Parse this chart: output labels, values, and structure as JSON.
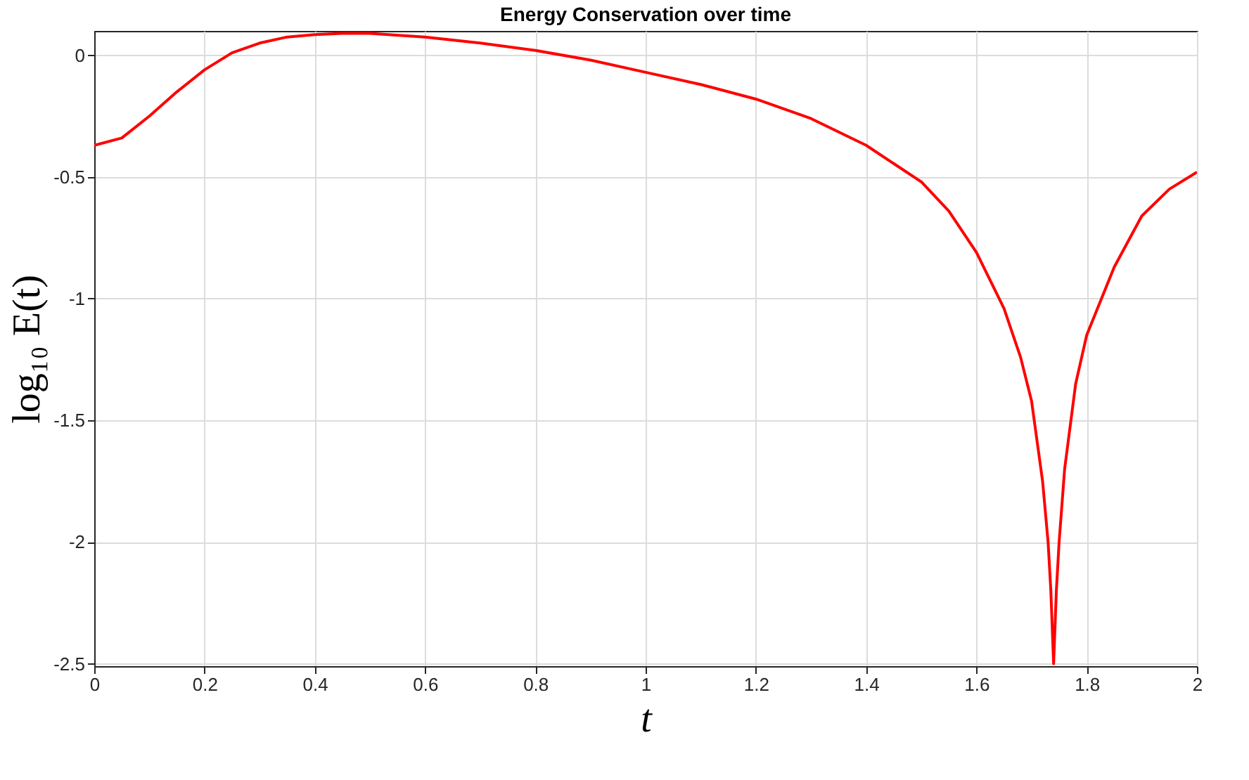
{
  "chart_data": {
    "type": "line",
    "title": "Energy Conservation over time",
    "xlabel": "t",
    "ylabel": "log₁₀ E(t)",
    "x": [
      0,
      0.05,
      0.1,
      0.15,
      0.2,
      0.25,
      0.3,
      0.35,
      0.4,
      0.45,
      0.5,
      0.6,
      0.7,
      0.8,
      0.9,
      1.0,
      1.1,
      1.2,
      1.3,
      1.4,
      1.5,
      1.55,
      1.6,
      1.65,
      1.68,
      1.7,
      1.72,
      1.73,
      1.735,
      1.74,
      1.745,
      1.75,
      1.76,
      1.78,
      1.8,
      1.85,
      1.9,
      1.95,
      2.0
    ],
    "series": [
      {
        "color": "#ff0000",
        "values": [
          -0.37,
          -0.34,
          -0.25,
          -0.15,
          -0.06,
          0.01,
          0.05,
          0.075,
          0.085,
          0.09,
          0.09,
          0.075,
          0.05,
          0.02,
          -0.02,
          -0.07,
          -0.12,
          -0.18,
          -0.26,
          -0.37,
          -0.52,
          -0.64,
          -0.81,
          -1.04,
          -1.24,
          -1.42,
          -1.75,
          -2.0,
          -2.2,
          -2.5,
          -2.2,
          -2.0,
          -1.7,
          -1.35,
          -1.15,
          -0.87,
          -0.66,
          -0.55,
          -0.48
        ]
      }
    ],
    "xlim": [
      0,
      2
    ],
    "ylim": [
      -2.51,
      0.1
    ],
    "xticks": [
      0,
      0.2,
      0.4,
      0.6,
      0.8,
      1,
      1.2,
      1.4,
      1.6,
      1.8,
      2
    ],
    "yticks": [
      0,
      -0.5,
      -1,
      -1.5,
      -2,
      -2.5
    ],
    "grid": true,
    "line_style": "solid",
    "marker": "none"
  }
}
